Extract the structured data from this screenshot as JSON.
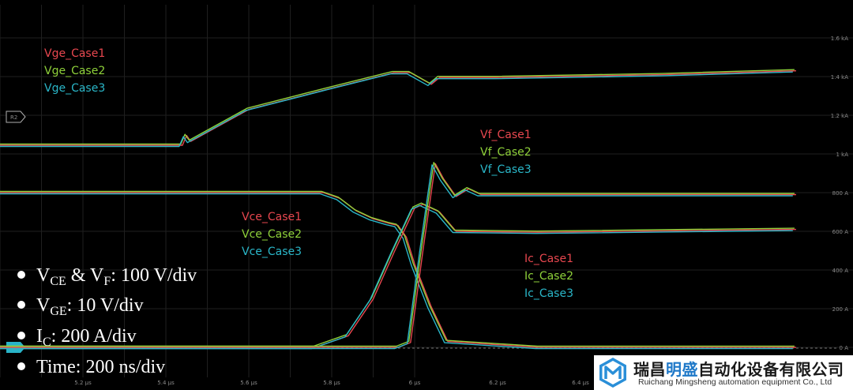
{
  "chart_data": {
    "type": "line",
    "x_unit": "µs",
    "x_ticks": [
      "5.2 µs",
      "5.4 µs",
      "5.6 µs",
      "5.8 µs",
      "6 µs",
      "6.2 µs",
      "6.4 µs"
    ],
    "x_tick_values": [
      5.2,
      5.4,
      5.6,
      5.8,
      6.0,
      6.2,
      6.4
    ],
    "right_ticks": [
      "1.6 kA",
      "1.4 kA",
      "1.2 kA",
      "1 kA",
      "800 A",
      "600 A",
      "400 A",
      "200 A",
      "0 A"
    ],
    "right_tick_values": [
      1600,
      1400,
      1200,
      1000,
      800,
      600,
      400,
      200,
      0
    ],
    "ref_markers": [
      "R2",
      "M3"
    ],
    "legend_groups": [
      {
        "labels": [
          "Vge_Case1",
          "Vge_Case2",
          "Vge_Case3"
        ]
      },
      {
        "labels": [
          "Vf_Case1",
          "Vf_Case2",
          "Vf_Case3"
        ]
      },
      {
        "labels": [
          "Vce_Case1",
          "Vce_Case2",
          "Vce_Case3"
        ]
      },
      {
        "labels": [
          "Ic_Case1",
          "Ic_Case2",
          "Ic_Case3"
        ]
      }
    ],
    "colors": {
      "case1": "#e8474f",
      "case2": "#8fd13a",
      "case3": "#2ab7c9"
    },
    "series": [
      {
        "name": "Vge_Case1",
        "x": [
          5.0,
          5.44,
          5.45,
          5.46,
          5.6,
          5.8,
          5.95,
          5.99,
          6.04,
          6.06,
          6.2,
          6.6,
          6.92
        ],
        "y": [
          1045,
          1045,
          1095,
          1065,
          1230,
          1340,
          1420,
          1420,
          1360,
          1395,
          1395,
          1410,
          1430
        ]
      },
      {
        "name": "Vce_Case1",
        "x": [
          5.0,
          5.78,
          5.82,
          5.86,
          5.9,
          5.94,
          5.96,
          5.98,
          6.0,
          6.04,
          6.08,
          6.3,
          6.92
        ],
        "y": [
          800,
          800,
          770,
          705,
          665,
          640,
          630,
          570,
          430,
          210,
          30,
          0,
          0
        ]
      },
      {
        "name": "Ic_Case1",
        "x": [
          5.0,
          5.76,
          5.84,
          5.9,
          5.95,
          6.0,
          6.02,
          6.06,
          6.1,
          6.3,
          6.92
        ],
        "y": [
          0,
          0,
          60,
          250,
          490,
          720,
          740,
          700,
          600,
          595,
          610
        ]
      },
      {
        "name": "Vf_Case1",
        "x": [
          5.0,
          5.96,
          5.99,
          6.02,
          6.05,
          6.07,
          6.1,
          6.13,
          6.16,
          6.92
        ],
        "y": [
          0,
          0,
          25,
          500,
          950,
          870,
          780,
          820,
          790,
          790
        ]
      }
    ],
    "annotations": [
      {
        "main": "V",
        "sub": "CE",
        "rest": " & V",
        "sub2": "F",
        "tail": ": 100 V/div"
      },
      {
        "main": "V",
        "sub": "GE",
        "tail": ": 10 V/div"
      },
      {
        "main": "I",
        "sub": "C",
        "tail": ": 200 A/div"
      },
      {
        "main": "Time: 200 ns/div"
      }
    ]
  },
  "logo": {
    "company_cn_a": "瑞昌",
    "company_cn_b": "明盛",
    "company_cn_c": "自动化设备有限公司",
    "company_en": "Ruichang Mingsheng automation equipment Co., Ltd"
  }
}
